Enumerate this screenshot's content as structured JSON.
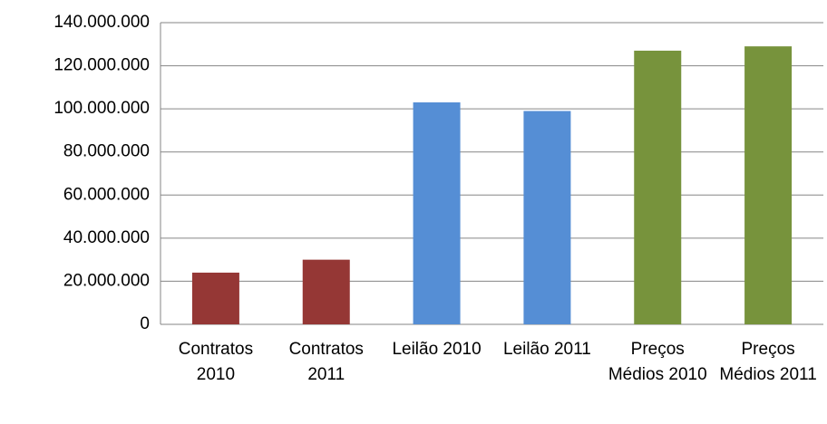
{
  "chart_data": {
    "type": "bar",
    "categories": [
      "Contratos 2010",
      "Contratos 2011",
      "Leilão 2010",
      "Leilão 2011",
      "Preços Médios 2010",
      "Preços Médios 2011"
    ],
    "values": [
      24000000,
      30000000,
      103000000,
      99000000,
      127000000,
      129000000
    ],
    "colors": [
      "#953735",
      "#953735",
      "#558ed5",
      "#558ed5",
      "#77933c",
      "#77933c"
    ],
    "ylim": [
      0,
      140000000
    ],
    "yticks": [
      0,
      {
        "value": 20000000,
        "label": "20.000.000"
      },
      {
        "value": 40000000,
        "label": "40.000.000"
      },
      {
        "value": 60000000,
        "label": "60.000.000"
      },
      {
        "value": 80000000,
        "label": "80.000.000"
      },
      {
        "value": 100000000,
        "label": "100.000.000"
      },
      {
        "value": 120000000,
        "label": "120.000.000"
      },
      {
        "value": 140000000,
        "label": "140.000.000"
      }
    ],
    "grid": true
  }
}
